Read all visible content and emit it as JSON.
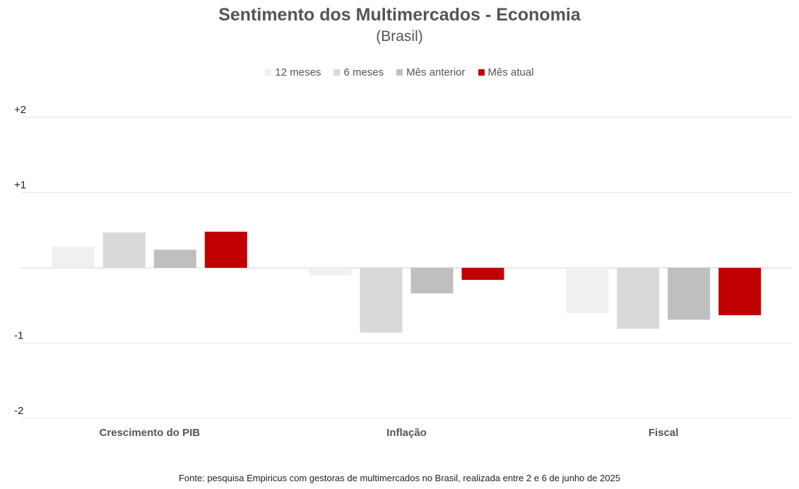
{
  "chart_data": {
    "type": "bar",
    "title": "Sentimento dos Multimercados - Economia",
    "subtitle": "(Brasil)",
    "categories": [
      "Crescimento do PIB",
      "Inflação",
      "Fiscal"
    ],
    "series": [
      {
        "name": "12 meses",
        "color": "#f0f0f0",
        "values": [
          0.28,
          -0.1,
          -0.6
        ]
      },
      {
        "name": "6 meses",
        "color": "#d9d9d9",
        "values": [
          0.47,
          -0.86,
          -0.81
        ]
      },
      {
        "name": "Mês anterior",
        "color": "#bfbfbf",
        "values": [
          0.24,
          -0.34,
          -0.69
        ]
      },
      {
        "name": "Mês atual",
        "color": "#c00000",
        "values": [
          0.48,
          -0.16,
          -0.63
        ]
      }
    ],
    "ylim": [
      -2,
      2
    ],
    "yticks": [
      2,
      1,
      0,
      -1,
      -2
    ],
    "ytick_labels": [
      "+2",
      "+1",
      "",
      "-1",
      "-2"
    ],
    "grid": true,
    "legend_position": "top-center",
    "source": "Fonte: pesquisa Empiricus com gestoras de multimercados no Brasil, realizada entre 2 e 6 de junho de 2025"
  }
}
